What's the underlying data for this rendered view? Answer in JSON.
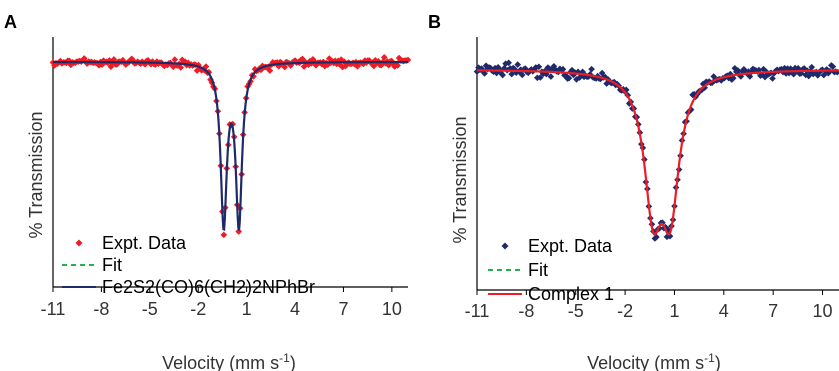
{
  "chart_data": [
    {
      "panel_label": "A",
      "type": "scatter",
      "xlabel": "Velocity (mm s",
      "xlabel_sup": "-1",
      "xlabel_tail": ")",
      "ylabel": "% Transmission",
      "xlim": [
        -11,
        11
      ],
      "ylim": [
        0,
        1
      ],
      "xticks": [
        -11,
        -8,
        -5,
        -2,
        1,
        4,
        7,
        10
      ],
      "xtick_labels": [
        "-11",
        "-8",
        "-5",
        "-2",
        "1",
        "4",
        "7",
        "10"
      ],
      "baseline": 0.93,
      "peaks": [
        {
          "center": -0.42,
          "depth": 0.66,
          "hwhm": 0.23
        },
        {
          "center": 0.52,
          "depth": 0.66,
          "hwhm": 0.23
        }
      ],
      "sample_range": [
        -11,
        11
      ],
      "sample_count": 240,
      "series": [
        {
          "name": "Expt. Data",
          "kind": "points",
          "marker": "diamond",
          "color": "#ee1c25"
        },
        {
          "name": "Fit",
          "kind": "line",
          "style": "dashed",
          "color": "#22b14c"
        },
        {
          "name": "Fe2S2(CO)6(CH2)2NPhBr",
          "kind": "line",
          "style": "solid",
          "color": "#1f2a6b"
        }
      ],
      "grid": false,
      "legend_position": "bottom-left"
    },
    {
      "panel_label": "B",
      "type": "scatter",
      "xlabel": "Velocity (mm s",
      "xlabel_sup": "-1",
      "xlabel_tail": ")",
      "ylabel": "% Transmission",
      "xlim": [
        -11,
        11
      ],
      "ylim": [
        0,
        1
      ],
      "xticks": [
        -11,
        -8,
        -5,
        -2,
        1,
        4,
        7,
        10
      ],
      "xtick_labels": [
        "-11",
        "-8",
        "-5",
        "-2",
        "1",
        "4",
        "7",
        "10"
      ],
      "baseline": 0.9,
      "peaks": [
        {
          "center": -0.3,
          "depth": 0.52,
          "hwhm": 0.65
        },
        {
          "center": 0.75,
          "depth": 0.52,
          "hwhm": 0.65
        }
      ],
      "sample_range": [
        -11,
        10.9
      ],
      "sample_count": 240,
      "series": [
        {
          "name": "Expt. Data",
          "kind": "points",
          "marker": "diamond",
          "color": "#1f2a6b"
        },
        {
          "name": "Fit",
          "kind": "line",
          "style": "dashed",
          "color": "#22b14c"
        },
        {
          "name": "Complex 1",
          "kind": "line",
          "style": "solid",
          "color": "#ee1c25"
        }
      ],
      "grid": false,
      "legend_position": "bottom-left"
    }
  ]
}
